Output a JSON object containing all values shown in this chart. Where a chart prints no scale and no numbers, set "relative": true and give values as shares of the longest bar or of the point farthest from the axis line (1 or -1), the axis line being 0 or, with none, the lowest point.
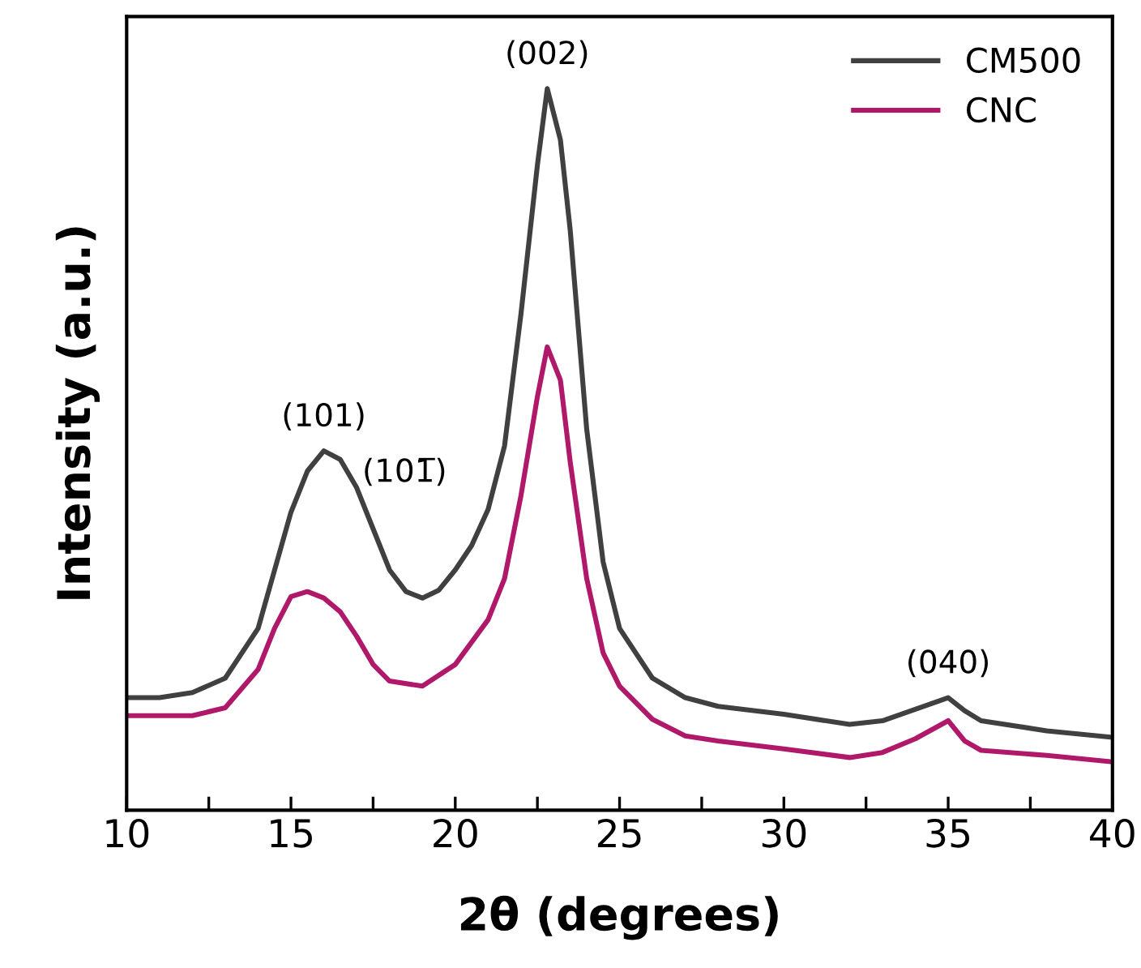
{
  "chart_data": {
    "type": "line",
    "relative": true,
    "xlabel": "2θ (degrees)",
    "ylabel": "Intensity (a.u.)",
    "xlim": [
      10,
      40
    ],
    "xticks": [
      10,
      {
        "value": 12.5,
        "label": null
      },
      15,
      {
        "value": 17.5,
        "label": null
      },
      20,
      {
        "value": 22.5,
        "label": null
      },
      25,
      {
        "value": 27.5,
        "label": null
      },
      30,
      {
        "value": 32.5,
        "label": null
      },
      35,
      {
        "value": 37.5,
        "label": null
      },
      40
    ],
    "tick_labels": "x",
    "legend": "top right",
    "grid": false,
    "series": [
      {
        "name": "CM500",
        "color": "#404040",
        "x": [
          10,
          11,
          12,
          13,
          14,
          15,
          15.5,
          16,
          16.5,
          17,
          17.5,
          18,
          18.5,
          19,
          19.5,
          20,
          20.5,
          21,
          21.5,
          22,
          22.5,
          22.8,
          23.2,
          23.5,
          24,
          24.5,
          25,
          26,
          27,
          28,
          30,
          32,
          33,
          34,
          35,
          35.5,
          36,
          38,
          40
        ],
        "values": [
          0.156,
          0.156,
          0.163,
          0.183,
          0.252,
          0.413,
          0.47,
          0.498,
          0.486,
          0.447,
          0.39,
          0.333,
          0.303,
          0.294,
          0.305,
          0.333,
          0.367,
          0.417,
          0.505,
          0.688,
          0.894,
          1,
          0.929,
          0.803,
          0.528,
          0.344,
          0.252,
          0.183,
          0.156,
          0.144,
          0.133,
          0.119,
          0.124,
          0.14,
          0.156,
          0.138,
          0.124,
          0.11,
          0.101
        ]
      },
      {
        "name": "CNC",
        "color": "#b0186a",
        "x": [
          10,
          12,
          13,
          14,
          14.5,
          15,
          15.5,
          16,
          16.5,
          17,
          17.5,
          18,
          19,
          20,
          21,
          21.5,
          22,
          22.5,
          22.8,
          23.2,
          23.5,
          24,
          24.5,
          25,
          26,
          27,
          28,
          30,
          32,
          33,
          34,
          35,
          35.5,
          36,
          38,
          40
        ],
        "values": [
          0.131,
          0.131,
          0.142,
          0.195,
          0.252,
          0.296,
          0.303,
          0.294,
          0.275,
          0.241,
          0.202,
          0.179,
          0.172,
          0.202,
          0.264,
          0.321,
          0.436,
          0.573,
          0.642,
          0.596,
          0.482,
          0.321,
          0.218,
          0.172,
          0.126,
          0.103,
          0.096,
          0.085,
          0.073,
          0.08,
          0.099,
          0.124,
          0.096,
          0.083,
          0.076,
          0.067
        ]
      }
    ],
    "annotations": [
      {
        "text": "(101)",
        "x": 16,
        "y": 0.498
      },
      {
        "text": "(101̅)",
        "x": 17.5,
        "y": 0.39
      },
      {
        "text": "(002)",
        "x": 22.8,
        "y": 1
      },
      {
        "text": "(040)",
        "x": 35,
        "y": 0.156
      }
    ]
  }
}
